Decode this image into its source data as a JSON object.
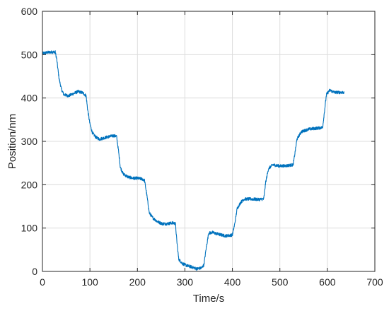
{
  "chart_data": {
    "type": "line",
    "title": "",
    "xlabel": "Time/s",
    "ylabel": "Position/nm",
    "xlim": [
      0,
      700
    ],
    "ylim": [
      0,
      600
    ],
    "grid": true,
    "x_ticks": [
      0,
      100,
      200,
      300,
      400,
      500,
      600,
      700
    ],
    "y_ticks": [
      0,
      100,
      200,
      300,
      400,
      500,
      600
    ],
    "x_tick_labels": [
      "0",
      "100",
      "200",
      "300",
      "400",
      "500",
      "600",
      "700"
    ],
    "y_tick_labels": [
      "0",
      "100",
      "200",
      "300",
      "400",
      "500",
      "600"
    ],
    "series_color": "#0072bd",
    "series": [
      {
        "points": [
          [
            0,
            503
          ],
          [
            10,
            505
          ],
          [
            20,
            506
          ],
          [
            27,
            506
          ],
          [
            30,
            490
          ],
          [
            35,
            445
          ],
          [
            40,
            420
          ],
          [
            45,
            408
          ],
          [
            55,
            405
          ],
          [
            65,
            410
          ],
          [
            75,
            415
          ],
          [
            85,
            412
          ],
          [
            92,
            405
          ],
          [
            95,
            375
          ],
          [
            100,
            340
          ],
          [
            105,
            320
          ],
          [
            112,
            310
          ],
          [
            120,
            305
          ],
          [
            130,
            308
          ],
          [
            140,
            311
          ],
          [
            150,
            313
          ],
          [
            156,
            312
          ],
          [
            160,
            280
          ],
          [
            164,
            240
          ],
          [
            170,
            225
          ],
          [
            180,
            218
          ],
          [
            190,
            215
          ],
          [
            200,
            215
          ],
          [
            210,
            213
          ],
          [
            215,
            210
          ],
          [
            220,
            175
          ],
          [
            225,
            135
          ],
          [
            232,
            124
          ],
          [
            242,
            115
          ],
          [
            252,
            110
          ],
          [
            262,
            110
          ],
          [
            275,
            112
          ],
          [
            280,
            110
          ],
          [
            283,
            70
          ],
          [
            287,
            28
          ],
          [
            295,
            18
          ],
          [
            305,
            13
          ],
          [
            315,
            10
          ],
          [
            325,
            6
          ],
          [
            335,
            8
          ],
          [
            340,
            15
          ],
          [
            345,
            55
          ],
          [
            350,
            88
          ],
          [
            358,
            90
          ],
          [
            370,
            86
          ],
          [
            385,
            82
          ],
          [
            400,
            84
          ],
          [
            405,
            110
          ],
          [
            410,
            145
          ],
          [
            418,
            160
          ],
          [
            425,
            167
          ],
          [
            440,
            167
          ],
          [
            455,
            166
          ],
          [
            466,
            167
          ],
          [
            470,
            205
          ],
          [
            476,
            237
          ],
          [
            485,
            246
          ],
          [
            500,
            243
          ],
          [
            515,
            244
          ],
          [
            528,
            246
          ],
          [
            532,
            275
          ],
          [
            536,
            305
          ],
          [
            545,
            322
          ],
          [
            560,
            328
          ],
          [
            575,
            330
          ],
          [
            590,
            332
          ],
          [
            594,
            370
          ],
          [
            598,
            408
          ],
          [
            605,
            418
          ],
          [
            615,
            413
          ],
          [
            625,
            413
          ],
          [
            635,
            413
          ]
        ]
      }
    ]
  }
}
